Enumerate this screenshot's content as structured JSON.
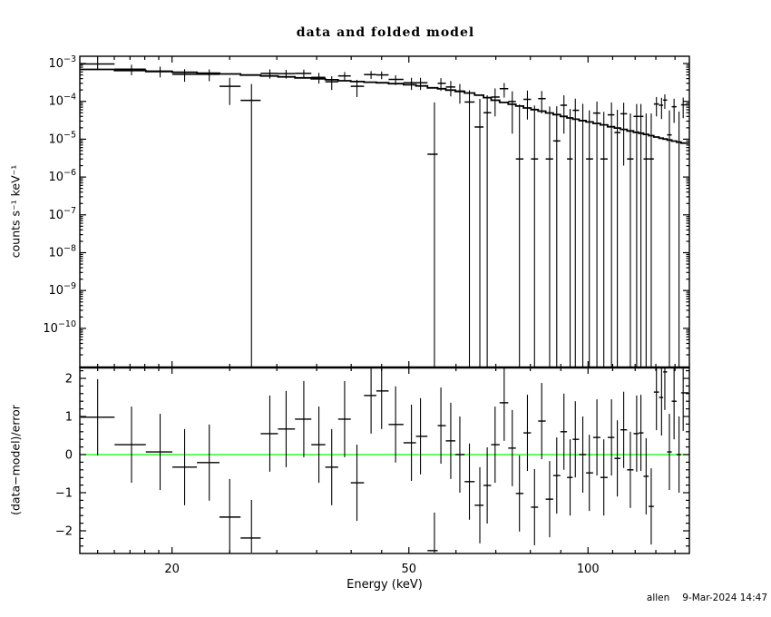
{
  "title": "data and folded model",
  "footer": {
    "user": "allen",
    "timestamp": "9-Mar-2024 14:47"
  },
  "colors": {
    "foreground": "#000000",
    "background": "#ffffff",
    "zero_line": "#00ff00"
  },
  "axes": {
    "x": {
      "label": "Energy (keV)",
      "scale": "log",
      "min": 14,
      "max": 148,
      "major_ticks": [
        20,
        50,
        100
      ],
      "minor_ticks": [
        15,
        16,
        17,
        18,
        19,
        25,
        30,
        35,
        40,
        45,
        60,
        70,
        80,
        90,
        110,
        120,
        130,
        140
      ]
    },
    "y_top": {
      "label": "counts s⁻¹ keV⁻¹",
      "scale": "log",
      "min": 1e-11,
      "max": 0.00156,
      "tick_exponents": [
        -3,
        -4,
        -5,
        -6,
        -7,
        -8,
        -9,
        -10
      ]
    },
    "y_bottom": {
      "label": "(data−model)/error",
      "scale": "linear",
      "min": -2.6,
      "max": 2.29,
      "major_ticks": [
        2,
        1,
        0,
        -1,
        -2
      ],
      "minor_step": 0.2
    }
  },
  "chart_data": [
    {
      "type": "scatter",
      "panel": "top",
      "title": "data and folded model",
      "xlabel": "Energy (keV)",
      "ylabel": "counts s⁻¹ keV⁻¹",
      "xscale": "log",
      "yscale": "log",
      "xlim": [
        14,
        148
      ],
      "ylim": [
        1e-11,
        0.00156
      ],
      "bins_contiguous": true,
      "series": [
        {
          "name": "data",
          "style": "cross-errorbar",
          "e": [
            15.0,
            17.1,
            19.1,
            21.0,
            23.1,
            25.0,
            27.2,
            29.2,
            31.1,
            33.3,
            35.3,
            37.1,
            39.0,
            40.9,
            43.2,
            45.0,
            47.5,
            50.5,
            52.3,
            55.2,
            56.6,
            58.8,
            60.9,
            63.2,
            65.8,
            67.7,
            69.8,
            72.3,
            74.6,
            76.7,
            79.1,
            81.3,
            83.6,
            86.2,
            88.6,
            91.1,
            93.3,
            95.2,
            98.0,
            100.5,
            103.5,
            106.3,
            109.5,
            112.0,
            114.8,
            117.8,
            120.7,
            122.7,
            125.2,
            127.7,
            130.3,
            132.9,
            134.6,
            137.0,
            139.5,
            142.2,
            144.5
          ],
          "rate": [
            0.00097,
            0.00071,
            0.00063,
            0.00052,
            0.00052,
            0.00025,
            0.000106,
            0.00055,
            0.00054,
            0.00055,
            0.00043,
            0.00033,
            0.00047,
            0.00025,
            0.00051,
            0.0005,
            0.00038,
            0.00031,
            0.00031,
            4e-06,
            0.0003,
            0.00024,
            0.000187,
            9.6e-05,
            2.1e-05,
            5e-05,
            0.00013,
            0.000216,
            9.9e-05,
            3e-06,
            0.000113,
            3e-06,
            0.000118,
            3e-06,
            9e-06,
            7.9e-05,
            3e-06,
            5.8e-05,
            3.1e-05,
            3e-06,
            4.9e-05,
            3e-06,
            4.4e-05,
            1.5e-05,
            4.7e-05,
            3e-06,
            4e-05,
            4e-05,
            3e-06,
            3e-06,
            8.5e-05,
            7.9e-05,
            0.000108,
            1.3e-05,
            7.2e-05,
            8.4e-06,
            8.1e-05
          ],
          "rate_err": [
            0.00028,
            0.00022,
            0.0002,
            0.00019,
            0.00018,
            0.00017,
            0.00018,
            0.00015,
            0.00014,
            0.00014,
            0.000135,
            0.00013,
            0.000125,
            0.00012,
            0.00012,
            0.000115,
            0.00011,
            0.00011,
            0.00011,
            9e-05,
            0.00011,
            0.000105,
            0.0001,
            0.0001,
            9.5e-05,
            9.5e-05,
            9e-05,
            9e-05,
            8.5e-05,
            8e-05,
            8e-05,
            7.5e-05,
            7e-05,
            7e-05,
            6.5e-05,
            6.5e-05,
            6e-05,
            6e-05,
            5.5e-05,
            5.5e-05,
            5e-05,
            5e-05,
            5e-05,
            4.5e-05,
            4.5e-05,
            4.5e-05,
            4.5e-05,
            4.5e-05,
            4.5e-05,
            4.5e-05,
            4.5e-05,
            4.5e-05,
            4.5e-05,
            4.5e-05,
            4.5e-05,
            4.5e-05,
            4.5e-05
          ]
        },
        {
          "name": "folded model",
          "style": "step-line",
          "e": [
            14,
            15,
            20,
            25,
            30,
            35,
            40,
            45,
            50,
            55,
            60,
            65,
            70,
            75,
            80,
            85,
            90,
            95,
            100,
            105,
            110,
            115,
            120,
            125,
            130,
            135,
            140,
            145,
            148
          ],
          "rate": [
            0.00071,
            0.0007,
            0.0006,
            0.00053,
            0.00046,
            0.0004,
            0.00034,
            0.00031,
            0.00028,
            0.00023,
            0.00019,
            0.000155,
            0.000105,
            8.2e-05,
            6.4e-05,
            5.2e-05,
            4.2e-05,
            3.4e-05,
            2.9e-05,
            2.5e-05,
            2.1e-05,
            1.8e-05,
            1.55e-05,
            1.35e-05,
            1.15e-05,
            1e-05,
            8.8e-06,
            7.8e-06,
            7.4e-06
          ]
        }
      ]
    },
    {
      "type": "scatter",
      "panel": "bottom",
      "xlabel": "Energy (keV)",
      "ylabel": "(data−model)/error",
      "xscale": "log",
      "yscale": "linear",
      "xlim": [
        14,
        148
      ],
      "ylim": [
        -2.6,
        2.29
      ],
      "zero_line": {
        "value": 0,
        "color": "#00ff00"
      },
      "series": [
        {
          "name": "(data-model)/error",
          "style": "cross-errorbar",
          "err": 1.0,
          "e": [
            15.0,
            17.1,
            19.1,
            21.0,
            23.1,
            25.0,
            27.2,
            29.2,
            31.1,
            33.3,
            35.3,
            37.1,
            39.0,
            40.9,
            43.2,
            45.0,
            47.5,
            50.5,
            52.3,
            55.2,
            56.6,
            58.8,
            60.9,
            63.2,
            65.8,
            67.7,
            69.8,
            72.3,
            74.6,
            76.7,
            79.1,
            81.3,
            83.6,
            86.2,
            88.6,
            91.1,
            93.3,
            95.2,
            98.0,
            100.5,
            103.5,
            106.3,
            109.5,
            112.0,
            114.8,
            117.8,
            120.7,
            122.7,
            125.2,
            127.7,
            130.3,
            132.9,
            134.6,
            137.0,
            139.5,
            142.2,
            144.5
          ],
          "value": [
            0.98,
            0.26,
            0.07,
            -0.33,
            -0.21,
            -1.64,
            -2.19,
            0.55,
            0.67,
            0.93,
            0.26,
            -0.33,
            0.93,
            -0.74,
            1.55,
            1.67,
            0.79,
            0.31,
            0.48,
            -2.52,
            0.76,
            0.36,
            0.0,
            -0.71,
            -1.33,
            -0.81,
            0.26,
            1.36,
            0.17,
            -1.02,
            0.57,
            -1.38,
            0.88,
            -1.17,
            -0.55,
            0.6,
            -0.6,
            0.4,
            0.0,
            -0.48,
            0.45,
            -0.6,
            0.45,
            -0.1,
            0.65,
            -0.4,
            0.55,
            0.57,
            -0.57,
            -1.36,
            1.64,
            1.5,
            2.17,
            0.07,
            1.4,
            0.0,
            1.62
          ]
        }
      ]
    }
  ]
}
